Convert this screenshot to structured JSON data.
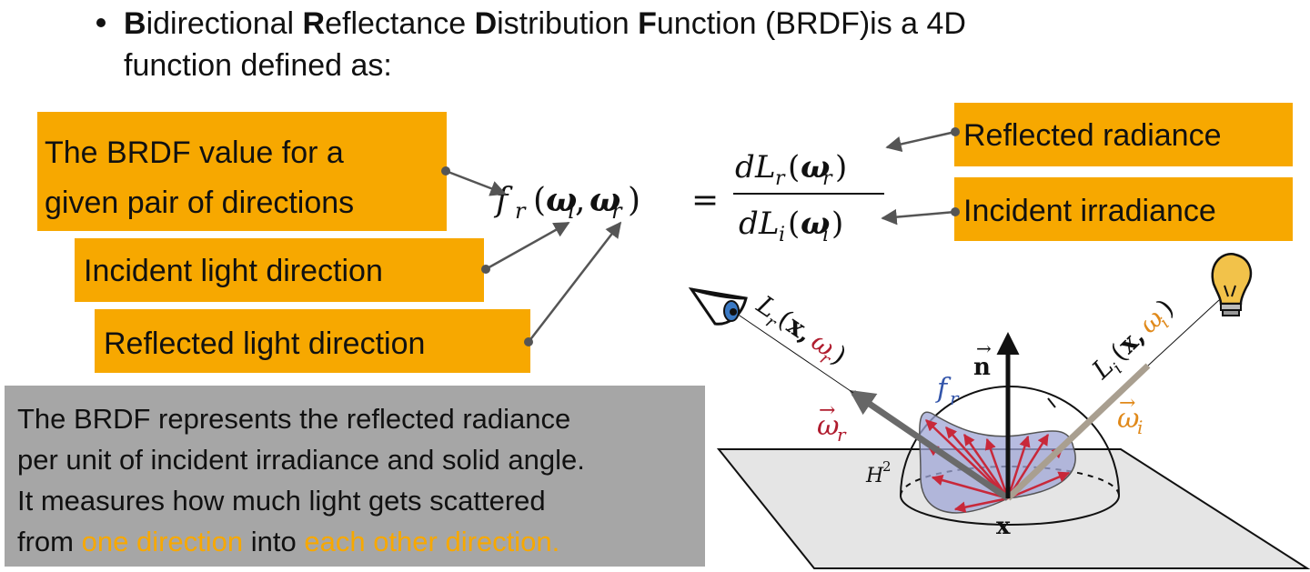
{
  "intro": {
    "w1_initial": "B",
    "w1_rest": "idirectional ",
    "w2_initial": "R",
    "w2_rest": "eflectance ",
    "w3_initial": "D",
    "w3_rest": "istribution ",
    "w4_initial": "F",
    "w4_rest": "unction (BRDF)is a 4D",
    "line2": "function defined as:"
  },
  "labels": {
    "brdf_value_line1": "The BRDF value for a",
    "brdf_value_line2": "given pair of directions",
    "incident_light_direction": "Incident light direction",
    "reflected_light_direction": "Reflected light direction",
    "reflected_radiance": "Reflected radiance",
    "incident_irradiance": "Incident irradiance"
  },
  "formula": {
    "lhs_f": "f",
    "lhs_r": "r",
    "omega": "ω",
    "sub_i": "i",
    "sub_r": "r",
    "eq": "=",
    "d": "d",
    "L": "L"
  },
  "explanation": {
    "line1": "The BRDF represents the reflected radiance",
    "line2": "per unit of incident irradiance and solid angle.",
    "line3": "It measures how much light gets scattered",
    "line4_a": "from ",
    "line4_hl1": "one direction",
    "line4_b": " into ",
    "line4_hl2": "each other direction."
  },
  "diagram": {
    "n_label": "n",
    "x_label": "x",
    "h2_base": "H",
    "h2_sup": "2",
    "fr_f": "f",
    "fr_r": "r",
    "Lr_L": "L",
    "Lr_r": "r",
    "Lr_x": "x,",
    "Lr_w": "ω",
    "Lr_wr": "r",
    "Li_L": "L",
    "Li_i": "i",
    "Li_x": "x,",
    "Li_w": "ω",
    "Li_wi": "i",
    "wr_w": "ω",
    "wr_r": "r",
    "wi_w": "ω",
    "wi_i": "i",
    "paren_open": "(",
    "paren_close": ")"
  },
  "colors": {
    "orange_box": "#F7A800",
    "gray_box": "#a6a6a6",
    "red_arrows": "#c8283a",
    "blue_lobe": "#9fa6d6",
    "wr_color": "#b01c2e",
    "wi_color": "#e0891a",
    "fr_color": "#3355aa"
  },
  "icons": [
    "eye-icon",
    "light-bulb-icon"
  ]
}
